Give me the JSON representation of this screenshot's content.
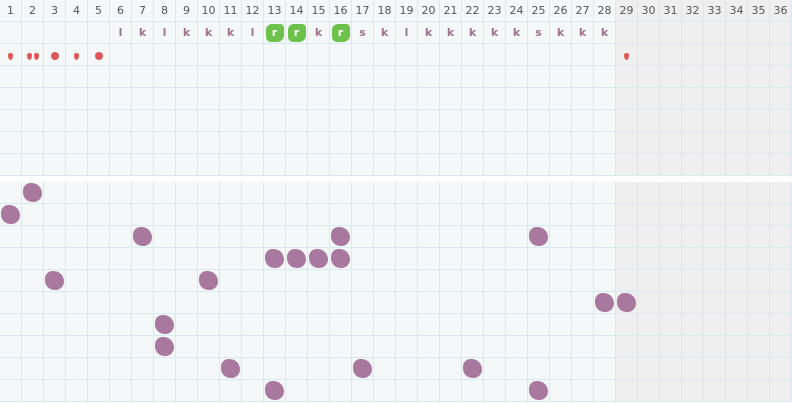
{
  "columns": [
    "1",
    "2",
    "3",
    "4",
    "5",
    "6",
    "7",
    "8",
    "9",
    "10",
    "11",
    "12",
    "13",
    "14",
    "15",
    "16",
    "17",
    "18",
    "19",
    "20",
    "21",
    "22",
    "23",
    "24",
    "25",
    "26",
    "27",
    "28",
    "29",
    "30",
    "31",
    "32",
    "33",
    "34",
    "35",
    "36"
  ],
  "active_columns": 28,
  "letters": [
    "",
    "",
    "",
    "",
    "",
    "l",
    "k",
    "l",
    "k",
    "k",
    "k",
    "l",
    "r",
    "r",
    "k",
    "r",
    "s",
    "k",
    "l",
    "k",
    "k",
    "k",
    "k",
    "k",
    "s",
    "k",
    "k",
    "k",
    "",
    "",
    "",
    "",
    "",
    "",
    "",
    ""
  ],
  "highlighted_letter": "r",
  "markers": {
    "1": "drop",
    "2": "double-drop",
    "3": "dot",
    "4": "drop",
    "5": "dot",
    "29": "drop"
  },
  "top_empty_rows": 5,
  "bottom_rows": 10,
  "bottom_marks": [
    [
      1,
      2
    ],
    [
      2,
      1
    ],
    [
      3,
      7
    ],
    [
      3,
      16
    ],
    [
      3,
      25
    ],
    [
      4,
      13
    ],
    [
      4,
      14
    ],
    [
      4,
      15
    ],
    [
      4,
      16
    ],
    [
      5,
      3
    ],
    [
      5,
      10
    ],
    [
      6,
      28
    ],
    [
      6,
      29
    ],
    [
      7,
      8
    ],
    [
      8,
      8
    ],
    [
      9,
      11
    ],
    [
      9,
      17
    ],
    [
      9,
      22
    ],
    [
      10,
      13
    ],
    [
      10,
      25
    ]
  ],
  "colors": {
    "mark": "#a9789f",
    "highlight": "#6cc24a",
    "marker": "#e05555",
    "inactive": "#efefef"
  }
}
